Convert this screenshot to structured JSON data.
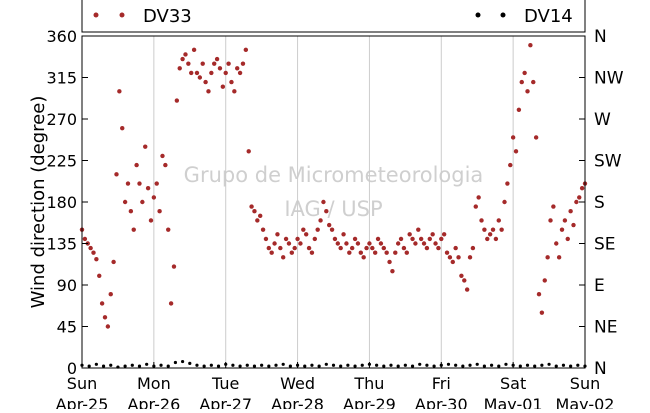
{
  "chart_data": {
    "type": "scatter",
    "title": "",
    "xlabel": "",
    "ylabel": "Wind direction (degree)",
    "ylim": [
      0,
      360
    ],
    "yticks": [
      0,
      45,
      90,
      135,
      180,
      225,
      270,
      315,
      360
    ],
    "y2_ticks": [
      {
        "label": "N",
        "value": 0
      },
      {
        "label": "NE",
        "value": 45
      },
      {
        "label": "E",
        "value": 90
      },
      {
        "label": "SE",
        "value": 135
      },
      {
        "label": "S",
        "value": 180
      },
      {
        "label": "SW",
        "value": 225
      },
      {
        "label": "W",
        "value": 270
      },
      {
        "label": "NW",
        "value": 315
      },
      {
        "label": "N",
        "value": 360
      }
    ],
    "xlim": [
      0,
      7
    ],
    "x_ticks": [
      {
        "x": 0,
        "day": "Sun",
        "date": "Apr-25"
      },
      {
        "x": 1,
        "day": "Mon",
        "date": "Apr-26"
      },
      {
        "x": 2,
        "day": "Tue",
        "date": "Apr-27"
      },
      {
        "x": 3,
        "day": "Wed",
        "date": "Apr-28"
      },
      {
        "x": 4,
        "day": "Thu",
        "date": "Apr-29"
      },
      {
        "x": 5,
        "day": "Fri",
        "date": "Apr-30"
      },
      {
        "x": 6,
        "day": "Sat",
        "date": "May-01"
      },
      {
        "x": 7,
        "day": "Sun",
        "date": "May-02"
      }
    ],
    "grid": "vertical",
    "legend_position": "top",
    "watermark": [
      "Grupo de Micrometeorologia",
      "IAG / USP"
    ],
    "series": [
      {
        "name": "DV33",
        "color": "#a52a2a",
        "points": [
          [
            0.0,
            150
          ],
          [
            0.04,
            140
          ],
          [
            0.08,
            135
          ],
          [
            0.12,
            130
          ],
          [
            0.16,
            125
          ],
          [
            0.2,
            118
          ],
          [
            0.24,
            100
          ],
          [
            0.28,
            70
          ],
          [
            0.32,
            55
          ],
          [
            0.36,
            45
          ],
          [
            0.4,
            80
          ],
          [
            0.44,
            115
          ],
          [
            0.48,
            210
          ],
          [
            0.52,
            300
          ],
          [
            0.56,
            260
          ],
          [
            0.6,
            180
          ],
          [
            0.64,
            200
          ],
          [
            0.68,
            170
          ],
          [
            0.72,
            150
          ],
          [
            0.76,
            220
          ],
          [
            0.8,
            200
          ],
          [
            0.84,
            180
          ],
          [
            0.88,
            240
          ],
          [
            0.92,
            195
          ],
          [
            0.96,
            160
          ],
          [
            1.0,
            185
          ],
          [
            1.04,
            200
          ],
          [
            1.08,
            170
          ],
          [
            1.12,
            230
          ],
          [
            1.16,
            220
          ],
          [
            1.2,
            150
          ],
          [
            1.24,
            70
          ],
          [
            1.28,
            110
          ],
          [
            1.32,
            290
          ],
          [
            1.36,
            325
          ],
          [
            1.4,
            335
          ],
          [
            1.44,
            340
          ],
          [
            1.48,
            330
          ],
          [
            1.52,
            320
          ],
          [
            1.56,
            345
          ],
          [
            1.6,
            320
          ],
          [
            1.64,
            315
          ],
          [
            1.68,
            330
          ],
          [
            1.72,
            310
          ],
          [
            1.76,
            300
          ],
          [
            1.8,
            320
          ],
          [
            1.84,
            330
          ],
          [
            1.88,
            335
          ],
          [
            1.92,
            325
          ],
          [
            1.96,
            305
          ],
          [
            2.0,
            320
          ],
          [
            2.04,
            330
          ],
          [
            2.08,
            310
          ],
          [
            2.12,
            300
          ],
          [
            2.16,
            325
          ],
          [
            2.2,
            320
          ],
          [
            2.24,
            330
          ],
          [
            2.28,
            345
          ],
          [
            2.32,
            235
          ],
          [
            2.36,
            175
          ],
          [
            2.4,
            170
          ],
          [
            2.44,
            160
          ],
          [
            2.48,
            165
          ],
          [
            2.52,
            150
          ],
          [
            2.56,
            140
          ],
          [
            2.6,
            130
          ],
          [
            2.64,
            125
          ],
          [
            2.68,
            135
          ],
          [
            2.72,
            145
          ],
          [
            2.76,
            130
          ],
          [
            2.8,
            120
          ],
          [
            2.84,
            140
          ],
          [
            2.88,
            135
          ],
          [
            2.92,
            125
          ],
          [
            2.96,
            130
          ],
          [
            3.0,
            140
          ],
          [
            3.04,
            135
          ],
          [
            3.08,
            150
          ],
          [
            3.12,
            145
          ],
          [
            3.16,
            130
          ],
          [
            3.2,
            125
          ],
          [
            3.24,
            140
          ],
          [
            3.28,
            150
          ],
          [
            3.32,
            160
          ],
          [
            3.36,
            180
          ],
          [
            3.4,
            170
          ],
          [
            3.44,
            155
          ],
          [
            3.48,
            150
          ],
          [
            3.52,
            140
          ],
          [
            3.56,
            135
          ],
          [
            3.6,
            130
          ],
          [
            3.64,
            145
          ],
          [
            3.68,
            135
          ],
          [
            3.72,
            125
          ],
          [
            3.76,
            130
          ],
          [
            3.8,
            140
          ],
          [
            3.84,
            135
          ],
          [
            3.88,
            125
          ],
          [
            3.92,
            120
          ],
          [
            3.96,
            130
          ],
          [
            4.0,
            135
          ],
          [
            4.04,
            130
          ],
          [
            4.08,
            125
          ],
          [
            4.12,
            140
          ],
          [
            4.16,
            135
          ],
          [
            4.2,
            130
          ],
          [
            4.24,
            125
          ],
          [
            4.28,
            115
          ],
          [
            4.32,
            105
          ],
          [
            4.36,
            125
          ],
          [
            4.4,
            135
          ],
          [
            4.44,
            140
          ],
          [
            4.48,
            130
          ],
          [
            4.52,
            125
          ],
          [
            4.56,
            145
          ],
          [
            4.6,
            140
          ],
          [
            4.64,
            135
          ],
          [
            4.68,
            150
          ],
          [
            4.72,
            140
          ],
          [
            4.76,
            135
          ],
          [
            4.8,
            130
          ],
          [
            4.84,
            140
          ],
          [
            4.88,
            145
          ],
          [
            4.92,
            135
          ],
          [
            4.96,
            130
          ],
          [
            5.0,
            140
          ],
          [
            5.04,
            145
          ],
          [
            5.08,
            125
          ],
          [
            5.12,
            120
          ],
          [
            5.16,
            115
          ],
          [
            5.2,
            130
          ],
          [
            5.24,
            120
          ],
          [
            5.28,
            100
          ],
          [
            5.32,
            95
          ],
          [
            5.36,
            85
          ],
          [
            5.4,
            120
          ],
          [
            5.44,
            130
          ],
          [
            5.48,
            175
          ],
          [
            5.52,
            185
          ],
          [
            5.56,
            160
          ],
          [
            5.6,
            150
          ],
          [
            5.64,
            140
          ],
          [
            5.68,
            145
          ],
          [
            5.72,
            150
          ],
          [
            5.76,
            140
          ],
          [
            5.8,
            160
          ],
          [
            5.84,
            150
          ],
          [
            5.88,
            180
          ],
          [
            5.92,
            200
          ],
          [
            5.96,
            220
          ],
          [
            6.0,
            250
          ],
          [
            6.04,
            235
          ],
          [
            6.08,
            280
          ],
          [
            6.12,
            310
          ],
          [
            6.16,
            320
          ],
          [
            6.2,
            300
          ],
          [
            6.24,
            350
          ],
          [
            6.28,
            310
          ],
          [
            6.32,
            250
          ],
          [
            6.36,
            80
          ],
          [
            6.4,
            60
          ],
          [
            6.44,
            95
          ],
          [
            6.48,
            120
          ],
          [
            6.52,
            160
          ],
          [
            6.56,
            175
          ],
          [
            6.6,
            135
          ],
          [
            6.64,
            120
          ],
          [
            6.68,
            150
          ],
          [
            6.72,
            160
          ],
          [
            6.76,
            140
          ],
          [
            6.8,
            170
          ],
          [
            6.84,
            155
          ],
          [
            6.88,
            180
          ],
          [
            6.92,
            185
          ],
          [
            6.96,
            195
          ],
          [
            7.0,
            200
          ]
        ]
      },
      {
        "name": "DV14",
        "color": "#000000",
        "points": [
          [
            0.0,
            3
          ],
          [
            0.1,
            2
          ],
          [
            0.2,
            4
          ],
          [
            0.3,
            2
          ],
          [
            0.4,
            3
          ],
          [
            0.5,
            1
          ],
          [
            0.6,
            2
          ],
          [
            0.7,
            3
          ],
          [
            0.8,
            2
          ],
          [
            0.9,
            4
          ],
          [
            1.0,
            2
          ],
          [
            1.1,
            3
          ],
          [
            1.2,
            2
          ],
          [
            1.3,
            6
          ],
          [
            1.4,
            7
          ],
          [
            1.5,
            5
          ],
          [
            1.6,
            3
          ],
          [
            1.7,
            2
          ],
          [
            1.8,
            3
          ],
          [
            1.9,
            2
          ],
          [
            2.0,
            4
          ],
          [
            2.1,
            3
          ],
          [
            2.2,
            2
          ],
          [
            2.3,
            3
          ],
          [
            2.4,
            2
          ],
          [
            2.5,
            3
          ],
          [
            2.6,
            2
          ],
          [
            2.7,
            3
          ],
          [
            2.8,
            4
          ],
          [
            2.9,
            2
          ],
          [
            3.0,
            3
          ],
          [
            3.1,
            2
          ],
          [
            3.2,
            3
          ],
          [
            3.3,
            2
          ],
          [
            3.4,
            4
          ],
          [
            3.5,
            3
          ],
          [
            3.6,
            2
          ],
          [
            3.7,
            3
          ],
          [
            3.8,
            2
          ],
          [
            3.9,
            3
          ],
          [
            4.0,
            4
          ],
          [
            4.1,
            3
          ],
          [
            4.2,
            2
          ],
          [
            4.3,
            3
          ],
          [
            4.4,
            2
          ],
          [
            4.5,
            3
          ],
          [
            4.6,
            2
          ],
          [
            4.7,
            4
          ],
          [
            4.8,
            3
          ],
          [
            4.9,
            2
          ],
          [
            5.0,
            3
          ],
          [
            5.1,
            4
          ],
          [
            5.2,
            3
          ],
          [
            5.3,
            2
          ],
          [
            5.4,
            3
          ],
          [
            5.5,
            4
          ],
          [
            5.6,
            2
          ],
          [
            5.7,
            3
          ],
          [
            5.8,
            2
          ],
          [
            5.9,
            4
          ],
          [
            6.0,
            3
          ],
          [
            6.1,
            2
          ],
          [
            6.2,
            3
          ],
          [
            6.3,
            2
          ],
          [
            6.4,
            3
          ],
          [
            6.5,
            4
          ],
          [
            6.6,
            2
          ],
          [
            6.7,
            3
          ],
          [
            6.8,
            2
          ],
          [
            6.9,
            3
          ],
          [
            7.0,
            2
          ]
        ]
      }
    ]
  }
}
